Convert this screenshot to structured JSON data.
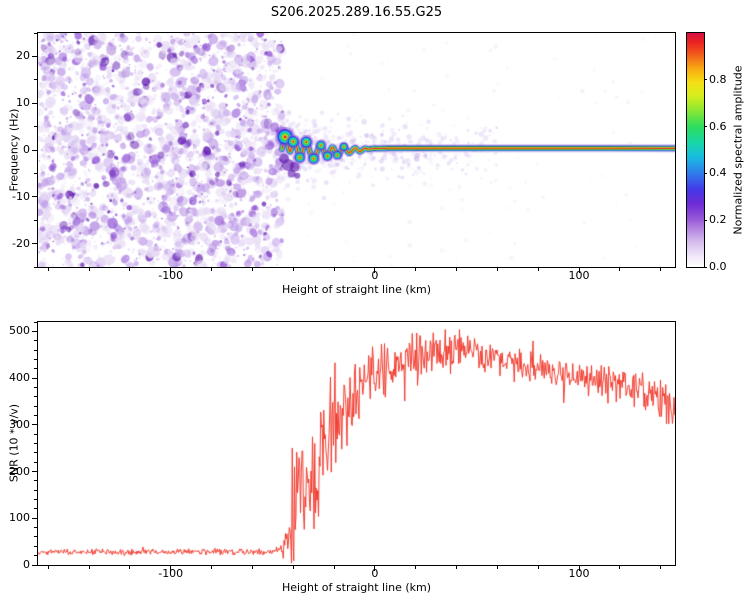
{
  "title": "S206.2025.289.16.55.G25",
  "chart_data": [
    {
      "type": "heatmap",
      "panel": "spectrogram",
      "xlabel": "Height of straight line (km)",
      "ylabel": "Frequency (Hz)",
      "xlim": [
        -165,
        147
      ],
      "ylim": [
        -25,
        25
      ],
      "xticks": [
        -100,
        0,
        100
      ],
      "yticks": [
        20,
        10,
        0,
        -10,
        -20
      ],
      "x_minor_step": 20,
      "y_minor_step": 5,
      "noise_region": {
        "description": "dense purple speckle noise covering -165 to -45 km across all frequencies",
        "x_end": -45,
        "seed": 1337,
        "blob_count": 2600,
        "palette": [
          "#e6daf4",
          "#c2a1e9",
          "#9257d6",
          "#5b13ad"
        ],
        "weights": [
          0.45,
          0.3,
          0.17,
          0.08
        ]
      },
      "halo_region": {
        "description": "faint lavender speckle hugging the carrier line right of -45 km",
        "seed": 421,
        "count": 520,
        "sigma_hz": 3.2,
        "x_start": -45,
        "x_decay": 105,
        "color": "#d8c6f0"
      },
      "signal_trace": {
        "description": "high-amplitude carrier near 0 Hz; oscillates about +/-3 Hz between -45 and -5 km, then flat near 0.35 Hz to the right edge",
        "edge_color": "#000000",
        "edge_from_x": -2,
        "waypoints": [
          [
            -45.5,
            0.2
          ],
          [
            -44.8,
            1.8
          ],
          [
            -44,
            2.8
          ],
          [
            -43.2,
            2.2
          ],
          [
            -42.4,
            0.6
          ],
          [
            -41.6,
            -0.6
          ],
          [
            -40.8,
            0.4
          ],
          [
            -40,
            1.8
          ],
          [
            -39.2,
            2.2
          ],
          [
            -38.4,
            1.0
          ],
          [
            -37.6,
            -0.6
          ],
          [
            -36.8,
            -1.6
          ],
          [
            -36,
            -1.2
          ],
          [
            -35.2,
            0.2
          ],
          [
            -34.4,
            1.2
          ],
          [
            -33.6,
            1.7
          ],
          [
            -32.8,
            1.0
          ],
          [
            -32,
            -0.2
          ],
          [
            -31.2,
            -1.2
          ],
          [
            -30.4,
            -1.8
          ],
          [
            -29.6,
            -1.9
          ],
          [
            -28.8,
            -1.0
          ],
          [
            -28,
            0.0
          ],
          [
            -27.2,
            0.8
          ],
          [
            -26.4,
            1.0
          ],
          [
            -25.6,
            0.4
          ],
          [
            -24.8,
            -0.5
          ],
          [
            -24,
            -1.2
          ],
          [
            -23.2,
            -1.3
          ],
          [
            -22.4,
            -0.6
          ],
          [
            -21.6,
            0.2
          ],
          [
            -20.8,
            0.7
          ],
          [
            -20,
            0.3
          ],
          [
            -19.2,
            -0.5
          ],
          [
            -18.4,
            -1.1
          ],
          [
            -17.6,
            -1.0
          ],
          [
            -16.8,
            -0.4
          ],
          [
            -16,
            0.3
          ],
          [
            -15.2,
            0.7
          ],
          [
            -14.4,
            0.4
          ],
          [
            -13.6,
            -0.2
          ],
          [
            -12.8,
            -0.7
          ],
          [
            -12,
            -0.6
          ],
          [
            -11.2,
            -0.1
          ],
          [
            -10.4,
            0.3
          ],
          [
            -9.6,
            0.5
          ],
          [
            -8.8,
            0.2
          ],
          [
            -8,
            -0.2
          ],
          [
            -7.2,
            -0.4
          ],
          [
            -6.4,
            -0.1
          ],
          [
            -5.6,
            0.2
          ],
          [
            -4.8,
            0.4
          ],
          [
            -4,
            0.3
          ],
          [
            -3,
            0.1
          ],
          [
            -2,
            0.3
          ],
          [
            0,
            0.35
          ],
          [
            3,
            0.3
          ],
          [
            6,
            0.4
          ],
          [
            10,
            0.35
          ],
          [
            20,
            0.4
          ],
          [
            40,
            0.35
          ],
          [
            80,
            0.4
          ],
          [
            147,
            0.35
          ]
        ],
        "layers": [
          {
            "color": "#b28ae4",
            "width": 8,
            "alpha": 0.5
          },
          {
            "color": "#3531e0",
            "width": 5.6,
            "alpha": 0.9
          },
          {
            "color": "#17c3ea",
            "width": 4.3,
            "alpha": 1
          },
          {
            "color": "#2bd94f",
            "width": 3.1,
            "alpha": 1
          },
          {
            "color": "#f2ea16",
            "width": 2.0,
            "alpha": 1
          },
          {
            "color": "#ef1d1d",
            "width": 1.1,
            "alpha": 1
          }
        ],
        "knot_rings": [
          [
            "#9257d6",
            6,
            0.55
          ],
          [
            "#3531e0",
            4.6,
            0.9
          ],
          [
            "#17c3ea",
            3.6,
            1
          ],
          [
            "#2bd94f",
            2.6,
            1
          ],
          [
            "#f2ea16",
            1.5,
            1
          ],
          [
            "#ef1d1d",
            0.9,
            1
          ]
        ],
        "knots": [
          {
            "x": -44,
            "s": 1.7
          },
          {
            "x": -40,
            "s": 1.2
          },
          {
            "x": -36.8,
            "s": 1.1
          },
          {
            "x": -33.6,
            "s": 1.2
          },
          {
            "x": -30,
            "s": 1.1
          },
          {
            "x": -26.4,
            "s": 1.0
          },
          {
            "x": -23.2,
            "s": 1.0
          },
          {
            "x": -18.4,
            "s": 0.9
          },
          {
            "x": -15.2,
            "s": 0.85
          }
        ],
        "dark_blobs": [
          [
            -44.5,
            -1.8,
            5
          ],
          [
            -42.5,
            -3.2,
            6
          ],
          [
            -40.8,
            -5.0,
            4
          ],
          [
            -39.3,
            -3.6,
            5
          ],
          [
            -38,
            -5.5,
            3
          ]
        ]
      },
      "colorbar": {
        "label": "Normalized spectral amplitude",
        "range": [
          0,
          1
        ],
        "ticks": [
          {
            "v": 0.0,
            "label": "0.0"
          },
          {
            "v": 0.2,
            "label": "0.2"
          },
          {
            "v": 0.4,
            "label": "0.4"
          },
          {
            "v": 0.6,
            "label": "0.6"
          },
          {
            "v": 0.8,
            "label": "0.8"
          }
        ],
        "stops": [
          [
            "0",
            "#ffffff"
          ],
          [
            "0.05",
            "#efe5f8"
          ],
          [
            "0.12",
            "#cfb2ea"
          ],
          [
            "0.2",
            "#9b5cd9"
          ],
          [
            "0.27",
            "#6d2bd4"
          ],
          [
            "0.33",
            "#4438e6"
          ],
          [
            "0.4",
            "#2f7cec"
          ],
          [
            "0.47",
            "#18bce0"
          ],
          [
            "0.53",
            "#17d6a8"
          ],
          [
            "0.6",
            "#2edd5d"
          ],
          [
            "0.67",
            "#8ce832"
          ],
          [
            "0.73",
            "#d4ee1e"
          ],
          [
            "0.79",
            "#f5df14"
          ],
          [
            "0.85",
            "#f8a611"
          ],
          [
            "0.91",
            "#f25a1c"
          ],
          [
            "0.96",
            "#ea2222"
          ],
          [
            "1",
            "#d80f45"
          ]
        ]
      }
    },
    {
      "type": "line",
      "panel": "snr",
      "xlabel": "Height of straight line (km)",
      "ylabel": "SNR (10 * v/v)",
      "xlim": [
        -165,
        147
      ],
      "ylim": [
        0,
        520
      ],
      "xticks": [
        -100,
        0,
        100
      ],
      "yticks": [
        0,
        100,
        200,
        300,
        400,
        500
      ],
      "x_minor_step": 20,
      "y_minor_step": 20,
      "line_color": "#ef2f21",
      "seed": 2025,
      "series": [
        {
          "name": "SNR",
          "description": "noise floor ~30 until -45 km, sharp noisy rise with large spikes -45 to -10 km, plateau ~420-470 from 0 to 60 km peaking near 500, slow decline to ~330 at right edge",
          "segments": [
            [
              -165,
              -50,
              28,
              28,
              8
            ],
            [
              -50,
              -45,
              28,
              34,
              9
            ],
            [
              -45,
              -41,
              34,
              80,
              50
            ],
            [
              -41,
              -37,
              80,
              190,
              180
            ],
            [
              -37,
              -33,
              150,
              170,
              140
            ],
            [
              -33,
              -27,
              170,
              240,
              150
            ],
            [
              -27,
              -20,
              240,
              300,
              140
            ],
            [
              -20,
              -12,
              300,
              355,
              110
            ],
            [
              -12,
              -4,
              355,
              405,
              85
            ],
            [
              -4,
              8,
              405,
              425,
              70
            ],
            [
              8,
              25,
              425,
              450,
              62
            ],
            [
              25,
              45,
              450,
              460,
              55
            ],
            [
              45,
              70,
              460,
              425,
              48
            ],
            [
              70,
              100,
              425,
              400,
              45
            ],
            [
              100,
              130,
              400,
              378,
              45
            ],
            [
              130,
              147,
              378,
              330,
              52
            ]
          ]
        }
      ]
    }
  ]
}
